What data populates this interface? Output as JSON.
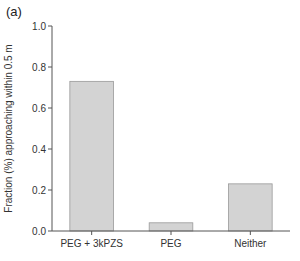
{
  "chart_data": {
    "type": "bar",
    "title": "(a)",
    "categories": [
      "PEG + 3kPZS",
      "PEG",
      "Neither"
    ],
    "values": [
      0.73,
      0.04,
      0.23
    ],
    "color": "#d3d3d3",
    "ylabel": "Fraction (%) approaching within 0.5 m",
    "ylim": [
      0,
      1.0
    ],
    "yticks": [
      {
        "value": 0.0,
        "label": "0.0"
      },
      0.2,
      0.4,
      0.6,
      0.8,
      {
        "value": 1.0,
        "label": "1.0"
      }
    ]
  }
}
